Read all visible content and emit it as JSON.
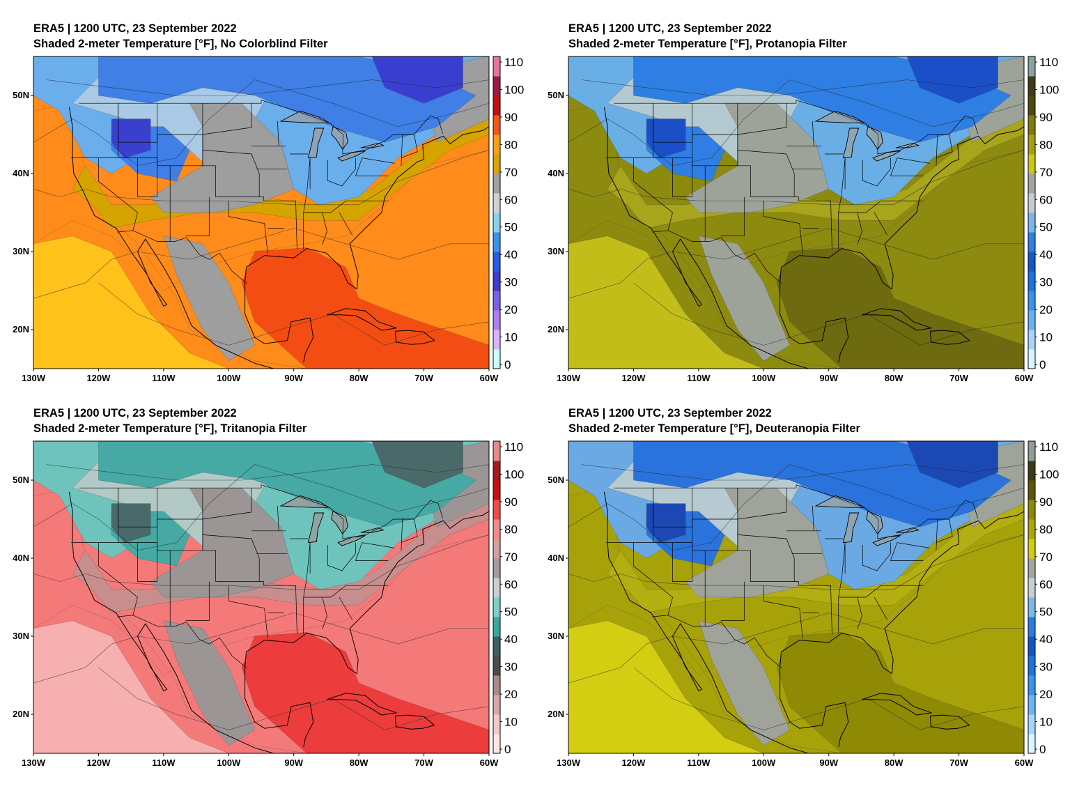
{
  "panels": [
    {
      "title_line1": "ERA5 | 1200 UTC, 23 September 2022",
      "title_line2": "Shaded 2-meter Temperature [°F], No Colorblind Filter",
      "palette": {
        "cold_core": "#3a3fd0",
        "cold": "#3f7fe6",
        "cool": "#6aaeec",
        "mild": "#a9c9e4",
        "neutral": "#9e9e9e",
        "warm": "#d6a400",
        "hot": "#ff8c1a",
        "very_hot": "#f44d14",
        "subtropic": "#ffc21a"
      },
      "colorbar": [
        "#c9ffff",
        "#d9b3ff",
        "#b07cf0",
        "#7a62e8",
        "#3e3acd",
        "#2a5be6",
        "#3a95ea",
        "#8ad0f2",
        "#cfd2d4",
        "#a0a0a0",
        "#d7a400",
        "#ff9e15",
        "#f55515",
        "#c41010",
        "#a0184a",
        "#e5739e"
      ]
    },
    {
      "title_line1": "ERA5 | 1200 UTC, 23 September 2022",
      "title_line2": "Shaded 2-meter Temperature [°F], Protanopia Filter",
      "palette": {
        "cold_core": "#1b4fc8",
        "cold": "#2f7ee3",
        "cool": "#6aaee6",
        "mild": "#b3c8cf",
        "neutral": "#9ea39a",
        "warm": "#a8a41c",
        "hot": "#8d8a10",
        "very_hot": "#6d6a10",
        "subtropic": "#c2bd18"
      },
      "colorbar": [
        "#d8f4ff",
        "#a8d4ff",
        "#6ab2f4",
        "#3e92ee",
        "#1e72e2",
        "#1558c8",
        "#2d80e4",
        "#7ab6ec",
        "#c4ccd0",
        "#a3a59f",
        "#cdc61a",
        "#a5a012",
        "#7f7a10",
        "#4c4a0c",
        "#3e3d18",
        "#8aa0a2"
      ]
    },
    {
      "title_line1": "ERA5 | 1200 UTC, 23 September 2022",
      "title_line2": "Shaded 2-meter Temperature [°F], Tritanopia Filter",
      "palette": {
        "cold_core": "#4a6a6a",
        "cold": "#46a9a4",
        "cool": "#6ec4bd",
        "mild": "#b3c9c6",
        "neutral": "#9c9595",
        "warm": "#c88e8e",
        "hot": "#f47a7a",
        "very_hot": "#ec3c3c",
        "subtropic": "#f7b0b0"
      },
      "colorbar": [
        "#ffe4e4",
        "#f2c8c8",
        "#d9a8a8",
        "#a88a8a",
        "#4c4c4c",
        "#3f6060",
        "#3aa8a0",
        "#7fcfc6",
        "#c8cfce",
        "#a59c9c",
        "#d6a0a0",
        "#f48a8a",
        "#f04a4a",
        "#cc1010",
        "#a81818",
        "#e88a8a"
      ]
    },
    {
      "title_line1": "ERA5 | 1200 UTC, 23 September 2022",
      "title_line2": "Shaded 2-meter Temperature [°F], Deuteranopia Filter",
      "palette": {
        "cold_core": "#1c48b4",
        "cold": "#2b73dc",
        "cool": "#6aa9e4",
        "mild": "#b7cad2",
        "neutral": "#9fa39a",
        "warm": "#b3ae12",
        "hot": "#a7a20a",
        "very_hot": "#8e8a06",
        "subtropic": "#d4ce12"
      },
      "colorbar": [
        "#d8f6ff",
        "#a6d6ff",
        "#6cb4f4",
        "#3c92ec",
        "#1f72e0",
        "#1555c4",
        "#2a7ee2",
        "#7ab8ea",
        "#c6cfd2",
        "#a4a6a0",
        "#d2cc12",
        "#aba60a",
        "#8d8908",
        "#5a5806",
        "#3c3c14",
        "#8f9c98"
      ]
    }
  ],
  "colorbar_labels": [
    "0",
    "10",
    "20",
    "30",
    "40",
    "50",
    "60",
    "70",
    "80",
    "90",
    "100",
    "110"
  ],
  "x_axis_labels": [
    "130W",
    "120W",
    "110W",
    "100W",
    "90W",
    "80W",
    "70W",
    "60W"
  ],
  "y_axis_labels": [
    "20N",
    "30N",
    "40N",
    "50N"
  ]
}
